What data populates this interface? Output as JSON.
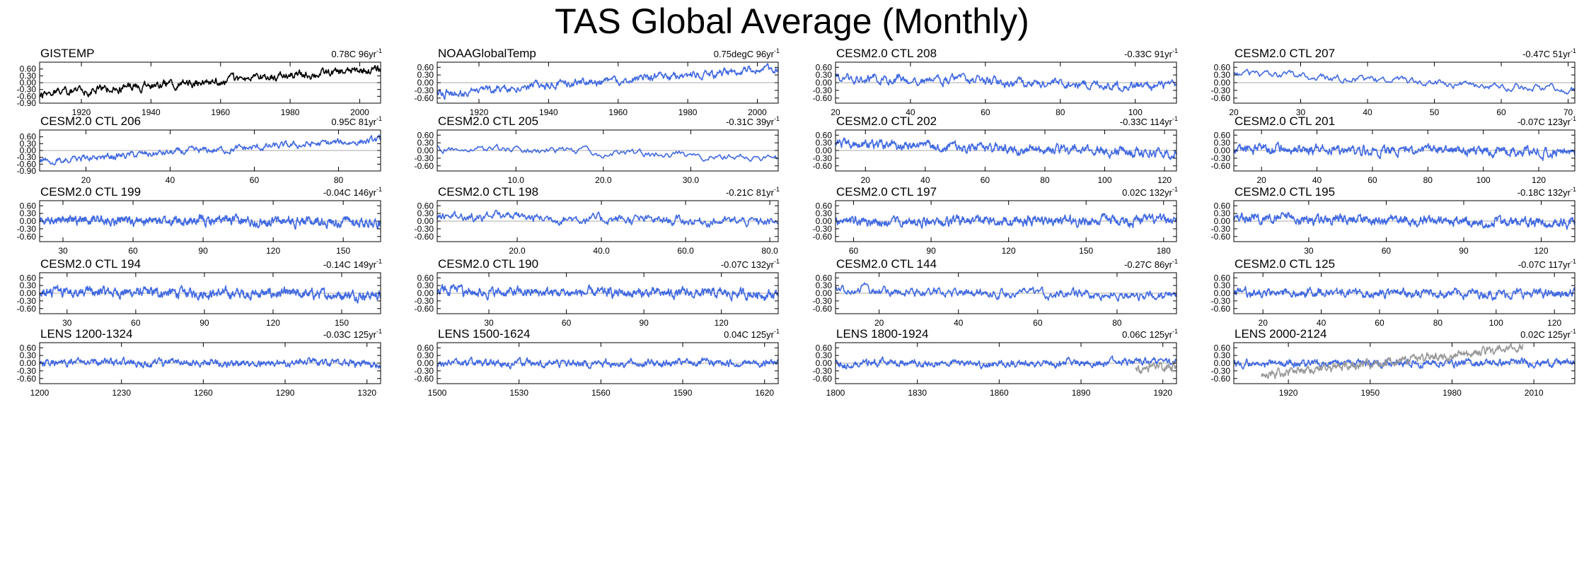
{
  "page": {
    "title": "TAS Global Average (Monthly)"
  },
  "colors": {
    "obs": "#000000",
    "model": "#4169e1",
    "overlay": "#999999",
    "zero_line": "#aaaaaa",
    "axis": "#000000"
  },
  "chart_data": [
    {
      "type": "line",
      "title": "GISTEMP",
      "trend": "0.78C 96yr",
      "trend_unit": "-1",
      "xlim": [
        1908,
        2006
      ],
      "xticks": [
        "1920",
        "1940",
        "1960",
        "1980",
        "2000"
      ],
      "xtick_values": [
        1920,
        1940,
        1960,
        1980,
        2000
      ],
      "ylim": [
        -0.9,
        0.9
      ],
      "yticks": [
        "0.60",
        "0.30",
        "0.00",
        "-0.30",
        "-0.60",
        "-0.90"
      ],
      "series": [
        {
          "name": "GISTEMP",
          "color": "obs",
          "start": -0.48,
          "end": 0.58,
          "amp": 0.16,
          "seed": 11
        }
      ]
    },
    {
      "type": "line",
      "title": "NOAAGlobalTemp",
      "trend": "0.75degC 96yr",
      "trend_unit": "-1",
      "xlim": [
        1908,
        2006
      ],
      "xticks": [
        "1920",
        "1940",
        "1960",
        "1980",
        "2000"
      ],
      "xtick_values": [
        1920,
        1940,
        1960,
        1980,
        2000
      ],
      "ylim": [
        -0.8,
        0.8
      ],
      "yticks": [
        "0.60",
        "0.30",
        "0.00",
        "-0.30",
        "-0.60"
      ],
      "series": [
        {
          "name": "NOAAGlobalTemp",
          "color": "model",
          "start": -0.42,
          "end": 0.55,
          "amp": 0.14,
          "seed": 12
        }
      ]
    },
    {
      "type": "line",
      "title": "CESM2.0 CTL 208",
      "trend": "-0.33C 91yr",
      "trend_unit": "-1",
      "xlim": [
        20,
        111
      ],
      "xticks": [
        "20",
        "40",
        "60",
        "80",
        "100"
      ],
      "xtick_values": [
        20,
        40,
        60,
        80,
        100
      ],
      "ylim": [
        -0.8,
        0.8
      ],
      "yticks": [
        "0.60",
        "0.30",
        "0.00",
        "-0.30",
        "-0.60"
      ],
      "series": [
        {
          "name": "CTL 208",
          "color": "model",
          "start": 0.2,
          "end": -0.15,
          "amp": 0.16,
          "seed": 13
        }
      ]
    },
    {
      "type": "line",
      "title": "CESM2.0 CTL 207",
      "trend": "-0.47C 51yr",
      "trend_unit": "-1",
      "xlim": [
        20,
        71
      ],
      "xticks": [
        "20",
        "30",
        "40",
        "50",
        "60",
        "70"
      ],
      "xtick_values": [
        20,
        30,
        40,
        50,
        60,
        70
      ],
      "ylim": [
        -0.8,
        0.8
      ],
      "yticks": [
        "0.60",
        "0.30",
        "0.00",
        "-0.30",
        "-0.60"
      ],
      "series": [
        {
          "name": "CTL 207",
          "color": "model",
          "start": 0.35,
          "end": -0.28,
          "amp": 0.13,
          "seed": 14
        }
      ]
    },
    {
      "type": "line",
      "title": "CESM2.0 CTL 206",
      "trend": "0.95C 81yr",
      "trend_unit": "-1",
      "xlim": [
        9,
        90
      ],
      "xticks": [
        "20",
        "40",
        "60",
        "80"
      ],
      "xtick_values": [
        20,
        40,
        60,
        80
      ],
      "ylim": [
        -0.9,
        0.9
      ],
      "yticks": [
        "0.60",
        "0.30",
        "0.00",
        "-0.30",
        "-0.60",
        "-0.90"
      ],
      "series": [
        {
          "name": "CTL 206",
          "color": "model",
          "start": -0.45,
          "end": 0.45,
          "amp": 0.14,
          "seed": 15
        }
      ]
    },
    {
      "type": "line",
      "title": "CESM2.0 CTL 205",
      "trend": "-0.31C 39yr",
      "trend_unit": "-1",
      "xlim": [
        1,
        40
      ],
      "xticks": [
        "10.0",
        "20.0",
        "30.0"
      ],
      "xtick_values": [
        10,
        20,
        30
      ],
      "ylim": [
        -0.8,
        0.8
      ],
      "yticks": [
        "0.60",
        "0.30",
        "0.00",
        "-0.30",
        "-0.60"
      ],
      "series": [
        {
          "name": "CTL 205",
          "color": "model",
          "start": 0.1,
          "end": -0.3,
          "amp": 0.14,
          "seed": 16
        }
      ]
    },
    {
      "type": "line",
      "title": "CESM2.0 CTL 202",
      "trend": "-0.33C 114yr",
      "trend_unit": "-1",
      "xlim": [
        10,
        124
      ],
      "xticks": [
        "20",
        "40",
        "60",
        "80",
        "100",
        "120"
      ],
      "xtick_values": [
        20,
        40,
        60,
        80,
        100,
        120
      ],
      "ylim": [
        -0.8,
        0.8
      ],
      "yticks": [
        "0.60",
        "0.30",
        "0.00",
        "-0.30",
        "-0.60"
      ],
      "series": [
        {
          "name": "CTL 202",
          "color": "model",
          "start": 0.25,
          "end": -0.1,
          "amp": 0.16,
          "seed": 17
        }
      ]
    },
    {
      "type": "line",
      "title": "CESM2.0 CTL 201",
      "trend": "-0.07C 123yr",
      "trend_unit": "-1",
      "xlim": [
        10,
        133
      ],
      "xticks": [
        "20",
        "40",
        "60",
        "80",
        "100",
        "120"
      ],
      "xtick_values": [
        20,
        40,
        60,
        80,
        100,
        120
      ],
      "ylim": [
        -0.8,
        0.8
      ],
      "yticks": [
        "0.60",
        "0.30",
        "0.00",
        "-0.30",
        "-0.60"
      ],
      "series": [
        {
          "name": "CTL 201",
          "color": "model",
          "start": 0.05,
          "end": -0.05,
          "amp": 0.16,
          "seed": 18
        }
      ]
    },
    {
      "type": "line",
      "title": "CESM2.0 CTL 199",
      "trend": "-0.04C 146yr",
      "trend_unit": "-1",
      "xlim": [
        20,
        166
      ],
      "xticks": [
        "30",
        "60",
        "90",
        "120",
        "150"
      ],
      "xtick_values": [
        30,
        60,
        90,
        120,
        150
      ],
      "ylim": [
        -0.8,
        0.8
      ],
      "yticks": [
        "0.60",
        "0.30",
        "0.00",
        "-0.30",
        "-0.60"
      ],
      "series": [
        {
          "name": "CTL 199",
          "color": "model",
          "start": 0.03,
          "end": -0.03,
          "amp": 0.16,
          "seed": 19
        }
      ]
    },
    {
      "type": "line",
      "title": "CESM2.0 CTL 198",
      "trend": "-0.21C 81yr",
      "trend_unit": "-1",
      "xlim": [
        1,
        82
      ],
      "xticks": [
        "20.0",
        "40.0",
        "60.0",
        "80.0"
      ],
      "xtick_values": [
        20,
        40,
        60,
        80
      ],
      "ylim": [
        -0.8,
        0.8
      ],
      "yticks": [
        "0.60",
        "0.30",
        "0.00",
        "-0.30",
        "-0.60"
      ],
      "series": [
        {
          "name": "CTL 198",
          "color": "model",
          "start": 0.2,
          "end": -0.05,
          "amp": 0.16,
          "seed": 20
        }
      ]
    },
    {
      "type": "line",
      "title": "CESM2.0 CTL 197",
      "trend": "0.02C 132yr",
      "trend_unit": "-1",
      "xlim": [
        53,
        185
      ],
      "xticks": [
        "60",
        "90",
        "120",
        "150",
        "180"
      ],
      "xtick_values": [
        60,
        90,
        120,
        150,
        180
      ],
      "ylim": [
        -0.8,
        0.8
      ],
      "yticks": [
        "0.60",
        "0.30",
        "0.00",
        "-0.30",
        "-0.60"
      ],
      "series": [
        {
          "name": "CTL 197",
          "color": "model",
          "start": 0.0,
          "end": 0.02,
          "amp": 0.16,
          "seed": 21
        }
      ]
    },
    {
      "type": "line",
      "title": "CESM2.0 CTL 195",
      "trend": "-0.18C 132yr",
      "trend_unit": "-1",
      "xlim": [
        1,
        133
      ],
      "xticks": [
        "30",
        "60",
        "90",
        "120"
      ],
      "xtick_values": [
        30,
        60,
        90,
        120
      ],
      "ylim": [
        -0.8,
        0.8
      ],
      "yticks": [
        "0.60",
        "0.30",
        "0.00",
        "-0.30",
        "-0.60"
      ],
      "series": [
        {
          "name": "CTL 195",
          "color": "model",
          "start": 0.1,
          "end": -0.08,
          "amp": 0.16,
          "seed": 22
        }
      ]
    },
    {
      "type": "line",
      "title": "CESM2.0 CTL 194",
      "trend": "-0.14C 149yr",
      "trend_unit": "-1",
      "xlim": [
        18,
        167
      ],
      "xticks": [
        "30",
        "60",
        "90",
        "120",
        "150"
      ],
      "xtick_values": [
        30,
        60,
        90,
        120,
        150
      ],
      "ylim": [
        -0.8,
        0.8
      ],
      "yticks": [
        "0.60",
        "0.30",
        "0.00",
        "-0.30",
        "-0.60"
      ],
      "series": [
        {
          "name": "CTL 194",
          "color": "model",
          "start": 0.07,
          "end": -0.07,
          "amp": 0.16,
          "seed": 23
        }
      ]
    },
    {
      "type": "line",
      "title": "CESM2.0 CTL 190",
      "trend": "-0.07C 132yr",
      "trend_unit": "-1",
      "xlim": [
        10,
        142
      ],
      "xticks": [
        "30",
        "60",
        "90",
        "120"
      ],
      "xtick_values": [
        30,
        60,
        90,
        120
      ],
      "ylim": [
        -0.8,
        0.8
      ],
      "yticks": [
        "0.60",
        "0.30",
        "0.00",
        "-0.30",
        "-0.60"
      ],
      "series": [
        {
          "name": "CTL 190",
          "color": "model",
          "start": 0.05,
          "end": -0.03,
          "amp": 0.16,
          "seed": 24
        }
      ]
    },
    {
      "type": "line",
      "title": "CESM2.0 CTL 144",
      "trend": "-0.27C 86yr",
      "trend_unit": "-1",
      "xlim": [
        9,
        95
      ],
      "xticks": [
        "20",
        "40",
        "60",
        "80"
      ],
      "xtick_values": [
        20,
        40,
        60,
        80
      ],
      "ylim": [
        -0.8,
        0.8
      ],
      "yticks": [
        "0.60",
        "0.30",
        "0.00",
        "-0.30",
        "-0.60"
      ],
      "series": [
        {
          "name": "CTL 144",
          "color": "model",
          "start": 0.12,
          "end": -0.12,
          "amp": 0.15,
          "seed": 25
        }
      ]
    },
    {
      "type": "line",
      "title": "CESM2.0 CTL 125",
      "trend": "-0.07C 117yr",
      "trend_unit": "-1",
      "xlim": [
        10,
        127
      ],
      "xticks": [
        "20",
        "40",
        "60",
        "80",
        "100",
        "120"
      ],
      "xtick_values": [
        20,
        40,
        60,
        80,
        100,
        120
      ],
      "ylim": [
        -0.8,
        0.8
      ],
      "yticks": [
        "0.60",
        "0.30",
        "0.00",
        "-0.30",
        "-0.60"
      ],
      "series": [
        {
          "name": "CTL 125",
          "color": "model",
          "start": 0.04,
          "end": -0.03,
          "amp": 0.15,
          "seed": 26
        }
      ]
    },
    {
      "type": "line",
      "title": "LENS 1200-1324",
      "trend": "-0.03C 125yr",
      "trend_unit": "-1",
      "xlim": [
        1200,
        1325
      ],
      "xticks": [
        "1200",
        "1230",
        "1260",
        "1290",
        "1320"
      ],
      "xtick_values": [
        1200,
        1230,
        1260,
        1290,
        1320
      ],
      "ylim": [
        -0.8,
        0.8
      ],
      "yticks": [
        "0.60",
        "0.30",
        "0.00",
        "-0.30",
        "-0.60"
      ],
      "series": [
        {
          "name": "LENS 1200-1324",
          "color": "model",
          "start": 0.02,
          "end": -0.02,
          "amp": 0.12,
          "seed": 27
        }
      ]
    },
    {
      "type": "line",
      "title": "LENS 1500-1624",
      "trend": "0.04C 125yr",
      "trend_unit": "-1",
      "xlim": [
        1500,
        1625
      ],
      "xticks": [
        "1500",
        "1530",
        "1560",
        "1590",
        "1620"
      ],
      "xtick_values": [
        1500,
        1530,
        1560,
        1590,
        1620
      ],
      "ylim": [
        -0.8,
        0.8
      ],
      "yticks": [
        "0.60",
        "0.30",
        "0.00",
        "-0.30",
        "-0.60"
      ],
      "series": [
        {
          "name": "LENS 1500-1624",
          "color": "model",
          "start": -0.02,
          "end": 0.02,
          "amp": 0.12,
          "seed": 28
        }
      ]
    },
    {
      "type": "line",
      "title": "LENS 1800-1924",
      "trend": "0.06C 125yr",
      "trend_unit": "-1",
      "xlim": [
        1800,
        1925
      ],
      "xticks": [
        "1800",
        "1830",
        "1860",
        "1890",
        "1920"
      ],
      "xtick_values": [
        1800,
        1830,
        1860,
        1890,
        1920
      ],
      "ylim": [
        -0.8,
        0.8
      ],
      "yticks": [
        "0.60",
        "0.30",
        "0.00",
        "-0.30",
        "-0.60"
      ],
      "series": [
        {
          "name": "LENS 1800-1924",
          "color": "model",
          "start": -0.03,
          "end": 0.03,
          "amp": 0.12,
          "seed": 29
        },
        {
          "name": "observed overlay",
          "color": "overlay",
          "x_from": 1910,
          "x_to": 1925,
          "start": -0.3,
          "end": -0.1,
          "amp": 0.16,
          "seed": 30
        }
      ]
    },
    {
      "type": "line",
      "title": "LENS 2000-2124",
      "trend": "0.02C 125yr",
      "trend_unit": "-1",
      "xlim": [
        1900,
        2025
      ],
      "xticks": [
        "1920",
        "1950",
        "1980",
        "2010"
      ],
      "xtick_values": [
        1920,
        1950,
        1980,
        2010
      ],
      "ylim": [
        -0.8,
        0.8
      ],
      "yticks": [
        "0.60",
        "0.30",
        "0.00",
        "-0.30",
        "-0.60"
      ],
      "series": [
        {
          "name": "LENS 2000-2124",
          "color": "model",
          "start": 0.0,
          "end": 0.02,
          "amp": 0.12,
          "seed": 31
        },
        {
          "name": "observed overlay",
          "color": "overlay",
          "x_from": 1910,
          "x_to": 2006,
          "start": -0.45,
          "end": 0.6,
          "amp": 0.14,
          "seed": 32
        }
      ]
    }
  ]
}
